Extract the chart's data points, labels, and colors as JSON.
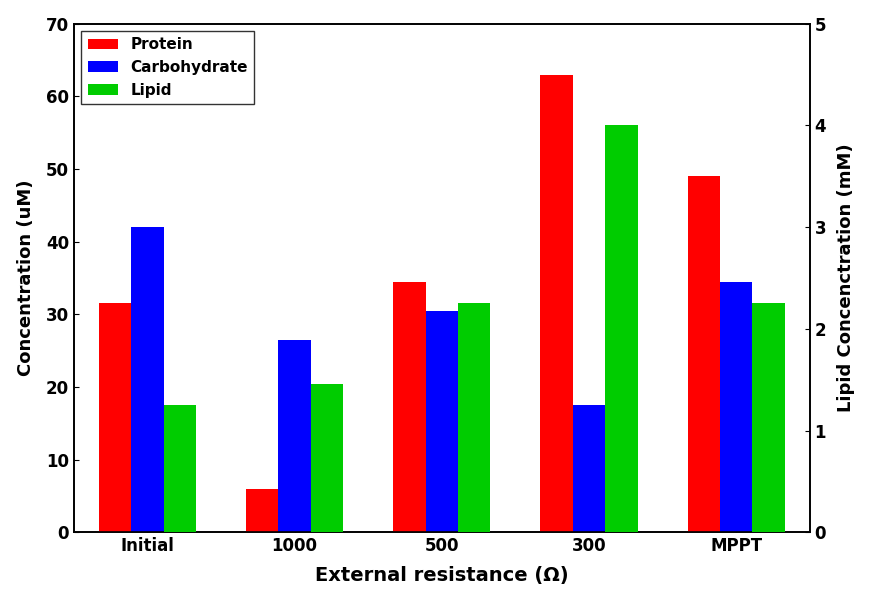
{
  "categories": [
    "Initial",
    "1000",
    "500",
    "300",
    "MPPT"
  ],
  "protein": [
    31.5,
    6.0,
    34.5,
    63.0,
    49.0
  ],
  "carbohydrate": [
    42.0,
    26.5,
    30.5,
    17.5,
    34.5
  ],
  "lipid_mM": [
    1.25,
    1.46,
    2.25,
    4.0,
    2.25
  ],
  "bar_colors": {
    "protein": "#FF0000",
    "carbohydrate": "#0000FF",
    "lipid": "#00CC00"
  },
  "xlabel": "External resistance (Ω)",
  "ylabel_left": "Concentration (uM)",
  "ylabel_right": "Lipid Concenctration (mM)",
  "ylim_left": [
    0,
    70
  ],
  "ylim_right": [
    0,
    5
  ],
  "yticks_left": [
    0,
    10,
    20,
    30,
    40,
    50,
    60,
    70
  ],
  "yticks_right": [
    0,
    1,
    2,
    3,
    4,
    5
  ],
  "legend_labels": [
    "Protein",
    "Carbohydrate",
    "Lipid"
  ],
  "bar_width": 0.22
}
